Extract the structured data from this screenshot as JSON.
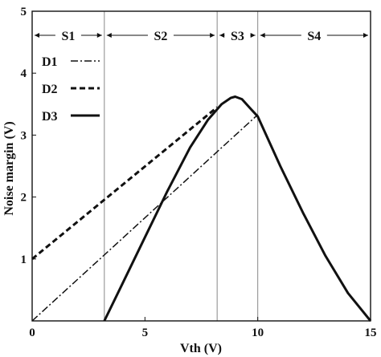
{
  "chart_data": {
    "type": "line",
    "title": "",
    "xlabel": "Vth (V)",
    "ylabel": "Noise margin (V)",
    "xlim": [
      0,
      15
    ],
    "ylim": [
      0,
      5
    ],
    "xticks": [
      "0",
      "5",
      "10",
      "15"
    ],
    "yticks": [
      "1",
      "2",
      "3",
      "4",
      "5"
    ],
    "grid": false,
    "legend_position": "top-left",
    "region_boundaries": [
      3.2,
      8.2,
      10
    ],
    "regions": [
      {
        "label": "S1",
        "from": 0,
        "to": 3.2
      },
      {
        "label": "S2",
        "from": 3.2,
        "to": 8.2
      },
      {
        "label": "S3",
        "from": 8.2,
        "to": 10
      },
      {
        "label": "S4",
        "from": 10,
        "to": 15
      }
    ],
    "series": [
      {
        "name": "D1",
        "style": "dash-dot",
        "points": [
          [
            0,
            0
          ],
          [
            10,
            3.33
          ]
        ]
      },
      {
        "name": "D2",
        "style": "dashed",
        "points": [
          [
            0,
            1.0
          ],
          [
            8.2,
            3.45
          ]
        ]
      },
      {
        "name": "D3",
        "style": "solid",
        "points": [
          [
            3.2,
            0
          ],
          [
            4.0,
            0.6
          ],
          [
            5.0,
            1.35
          ],
          [
            6.0,
            2.1
          ],
          [
            7.0,
            2.8
          ],
          [
            7.8,
            3.25
          ],
          [
            8.4,
            3.5
          ],
          [
            8.8,
            3.6
          ],
          [
            9.0,
            3.62
          ],
          [
            9.3,
            3.58
          ],
          [
            9.7,
            3.42
          ],
          [
            10.0,
            3.3
          ],
          [
            11.0,
            2.5
          ],
          [
            12.0,
            1.75
          ],
          [
            13.0,
            1.05
          ],
          [
            14.0,
            0.45
          ],
          [
            15.0,
            0
          ]
        ]
      }
    ]
  }
}
